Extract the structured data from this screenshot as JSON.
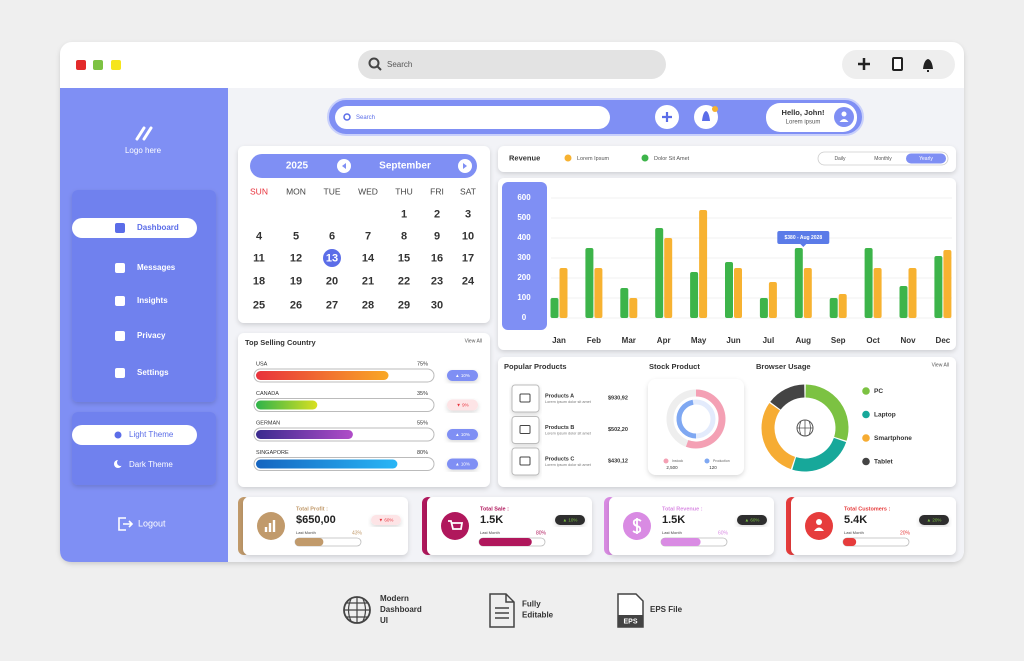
{
  "window": {
    "search": "Search"
  },
  "sidebar": {
    "logo": "Logo here",
    "menu": [
      "Dashboard",
      "Messages",
      "Insights",
      "Privacy",
      "Settings"
    ],
    "themes": [
      "Light Theme",
      "Dark Theme"
    ],
    "logout": "Logout"
  },
  "header": {
    "search": "Search",
    "greeting": "Hello, John!",
    "subtitle": "Lorem ipsum"
  },
  "calendar": {
    "year": "2025",
    "month": "September",
    "weekdays": [
      "SUN",
      "MON",
      "TUE",
      "WED",
      "THU",
      "FRI",
      "SAT"
    ],
    "weeks": [
      [
        1,
        2,
        3
      ],
      [
        4,
        5,
        6,
        7,
        8,
        9,
        10
      ],
      [
        11,
        12,
        13,
        14,
        15,
        16,
        17
      ],
      [
        18,
        19,
        20,
        21,
        22,
        23,
        24
      ],
      [
        25,
        26,
        27,
        28,
        29,
        30
      ]
    ]
  },
  "top_selling": {
    "title": "Top Selling Country",
    "view_all": "View All",
    "xlim": [
      0,
      100
    ],
    "items": [
      {
        "name": "USA",
        "value": 75,
        "value_label": "75%",
        "change": "▲ 10%",
        "colors": [
          "#e8323c",
          "#f9a825"
        ]
      },
      {
        "name": "CANADA",
        "value": 35,
        "value_label": "35%",
        "change": "▼ 9%",
        "colors": [
          "#2fb34a",
          "#d9e021"
        ]
      },
      {
        "name": "GERMAN",
        "value": 55,
        "value_label": "55%",
        "change": "▲ 10%",
        "colors": [
          "#3b2b8f",
          "#b04cc8"
        ]
      },
      {
        "name": "SINGAPORE",
        "value": 80,
        "value_label": "80%",
        "change": "▲ 10%",
        "colors": [
          "#1565c0",
          "#29b6f6"
        ]
      }
    ]
  },
  "chart_data": [
    {
      "type": "bar",
      "title": "Revenue",
      "categories": [
        "Jan",
        "Feb",
        "Mar",
        "Apr",
        "May",
        "Jun",
        "Jul",
        "Aug",
        "Sep",
        "Oct",
        "Nov",
        "Dec"
      ],
      "series": [
        {
          "name": "Lorem Ipsum",
          "color": "#f7b231",
          "values": [
            250,
            250,
            100,
            400,
            540,
            250,
            180,
            250,
            120,
            250,
            250,
            340
          ]
        },
        {
          "name": "Dolor Sit Amet",
          "color": "#3db44a",
          "values": [
            100,
            350,
            150,
            450,
            230,
            280,
            100,
            350,
            100,
            350,
            160,
            310
          ]
        }
      ],
      "ylim": [
        0,
        600
      ],
      "yticks": [
        0,
        100,
        200,
        300,
        400,
        500,
        600
      ],
      "grid": true,
      "periods": [
        "Daily",
        "Monthly",
        "Yearly"
      ],
      "annotation": "$380 - Aug 2028"
    },
    {
      "type": "pie",
      "title": "Browser Usage",
      "view_all": "View All",
      "categories": [
        "PC",
        "Laptop",
        "Smartphone",
        "Tablet"
      ],
      "values": [
        30,
        25,
        30,
        15
      ],
      "colors": [
        "#7cc242",
        "#17a89a",
        "#f6ac33",
        "#444444"
      ]
    }
  ],
  "popular_products": {
    "title": "Popular Products",
    "items": [
      {
        "name": "Products A",
        "desc": "Lorem ipsum dolor sit amet",
        "price": "$930,92"
      },
      {
        "name": "Products B",
        "desc": "Lorem ipsum dolor sit amet",
        "price": "$502,20"
      },
      {
        "name": "Products C",
        "desc": "Lorem ipsum dolor sit amet",
        "price": "$430,12"
      }
    ]
  },
  "stock_product": {
    "title": "Stock Product",
    "legend": [
      {
        "name": "Instock",
        "value": "2,500"
      },
      {
        "name": "Production",
        "value": "120"
      }
    ]
  },
  "cards": {
    "xlim": [
      0,
      100
    ],
    "items": [
      {
        "title": "Total Profit :",
        "value": "$650,00",
        "change": "▼ 60%",
        "period": "Last Month",
        "progress": 43,
        "progress_label": "43%",
        "color": "#c19a6b"
      },
      {
        "title": "Total Sale :",
        "value": "1.5K",
        "change": "▲ 10%",
        "period": "Last Month",
        "progress": 80,
        "progress_label": "80%",
        "color": "#b0175c"
      },
      {
        "title": "Total Revenue :",
        "value": "1.5K",
        "change": "▲ 60%",
        "period": "Last Month",
        "progress": 60,
        "progress_label": "60%",
        "color": "#d98be3"
      },
      {
        "title": "Total Customers :",
        "value": "5.4K",
        "change": "▲ 20%",
        "period": "Last Month",
        "progress": 20,
        "progress_label": "20%",
        "color": "#e63c3c"
      }
    ]
  },
  "footer": {
    "items": [
      [
        "Modern",
        "Dashboard",
        "UI"
      ],
      [
        "Fully",
        "Editable"
      ],
      [
        "EPS File"
      ]
    ],
    "eps_icon": "EPS"
  }
}
